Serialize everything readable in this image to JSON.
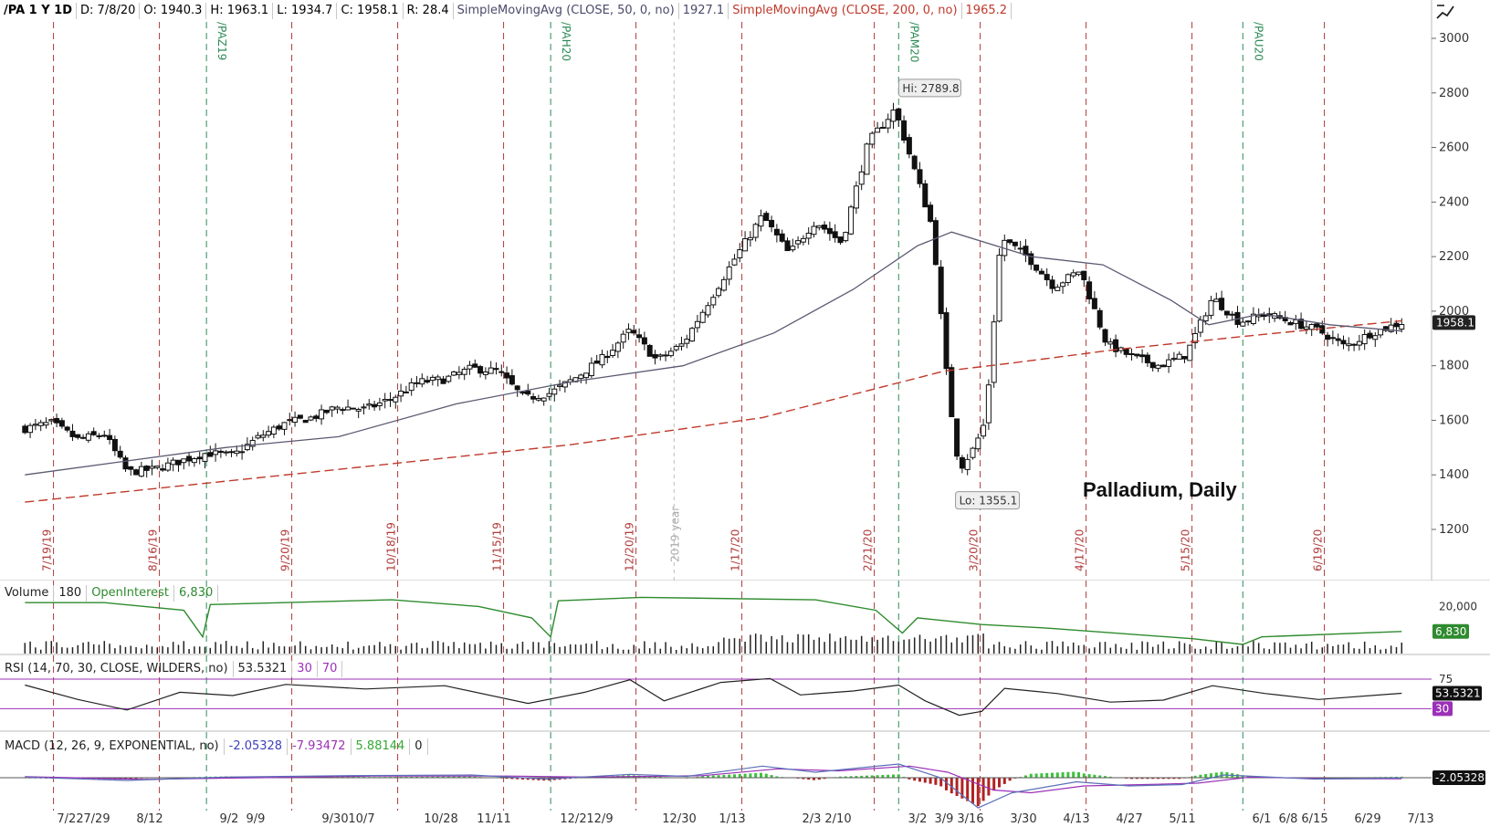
{
  "header": {
    "symbol": "/PA 1 Y 1D",
    "date": "D: 7/8/20",
    "open": "O: 1940.3",
    "high": "H: 1963.1",
    "low": "L: 1934.7",
    "close": "C: 1958.1",
    "range": "R: 28.4",
    "ma50_label": "SimpleMovingAvg (CLOSE, 50, 0, no)",
    "ma50_value": "1927.1",
    "ma200_label": "SimpleMovingAvg (CLOSE, 200, 0, no)",
    "ma200_value": "1965.2"
  },
  "colors": {
    "ma50": "#56566e",
    "ma200": "#c0392b",
    "expiry_red": "#b03a3a",
    "expiry_green": "#2e8b57",
    "open_interest": "#2e8b2e",
    "rsi_band": "#9b30b8"
  },
  "chart_data": [
    {
      "type": "candlestick",
      "title": "Palladium, Daily",
      "ylim": [
        1100,
        3050
      ],
      "y_ticks": [
        "3000",
        "2800",
        "2600",
        "2400",
        "2200",
        "2000",
        "1800",
        "1600",
        "1400",
        "1200"
      ],
      "price_label": "1958.1",
      "hi_label": "Hi: 2789.8",
      "lo_label": "Lo: 1355.1",
      "x_labels": [
        "7/22",
        "7/29",
        "8/12",
        "9/2",
        "9/9",
        "9/30",
        "10/7",
        "10/28",
        "11/11",
        "12/2",
        "12/9",
        "12/30",
        "1/13",
        "2/3",
        "2/10",
        "3/2",
        "3/9",
        "3/16",
        "3/30",
        "4/13",
        "4/27",
        "5/11",
        "6/1",
        "6/8",
        "6/15",
        "6/29",
        "7/13"
      ],
      "expiry_dates": [
        "7/19/19",
        "8/16/19",
        "9/20/19",
        "10/18/19",
        "11/15/19",
        "12/20/19",
        "1/17/20",
        "2/21/20",
        "3/20/20",
        "4/17/20",
        "5/15/20",
        "6/19/20"
      ],
      "contract_rolls": [
        "/PAZ19",
        "/PAH20",
        "/PAM20",
        "/PAU20"
      ],
      "year_marker": "2019 year",
      "price_path": [
        {
          "x": "7/10/19",
          "y": 1570
        },
        {
          "x": "7/17/19",
          "y": 1590
        },
        {
          "x": "7/24/19",
          "y": 1530
        },
        {
          "x": "7/31/19",
          "y": 1550
        },
        {
          "x": "8/6/19",
          "y": 1410
        },
        {
          "x": "8/13/19",
          "y": 1420
        },
        {
          "x": "8/20/19",
          "y": 1450
        },
        {
          "x": "8/27/19",
          "y": 1480
        },
        {
          "x": "9/3/19",
          "y": 1470
        },
        {
          "x": "9/10/19",
          "y": 1540
        },
        {
          "x": "9/17/19",
          "y": 1590
        },
        {
          "x": "9/24/19",
          "y": 1610
        },
        {
          "x": "10/1/19",
          "y": 1650
        },
        {
          "x": "10/8/19",
          "y": 1640
        },
        {
          "x": "10/15/19",
          "y": 1680
        },
        {
          "x": "10/22/19",
          "y": 1740
        },
        {
          "x": "10/29/19",
          "y": 1750
        },
        {
          "x": "11/5/19",
          "y": 1790
        },
        {
          "x": "11/12/19",
          "y": 1780
        },
        {
          "x": "11/19/19",
          "y": 1680
        },
        {
          "x": "11/26/19",
          "y": 1700
        },
        {
          "x": "12/3/19",
          "y": 1760
        },
        {
          "x": "12/10/19",
          "y": 1830
        },
        {
          "x": "12/17/19",
          "y": 1930
        },
        {
          "x": "12/24/19",
          "y": 1820
        },
        {
          "x": "12/31/19",
          "y": 1880
        },
        {
          "x": "1/7/20",
          "y": 2040
        },
        {
          "x": "1/14/20",
          "y": 2200
        },
        {
          "x": "1/21/20",
          "y": 2350
        },
        {
          "x": "1/28/20",
          "y": 2210
        },
        {
          "x": "2/4/20",
          "y": 2330
        },
        {
          "x": "2/11/20",
          "y": 2250
        },
        {
          "x": "2/18/20",
          "y": 2620
        },
        {
          "x": "2/25/20",
          "y": 2740
        },
        {
          "x": "3/3/20",
          "y": 2440
        },
        {
          "x": "3/6/20",
          "y": 2300
        },
        {
          "x": "3/10/20",
          "y": 1720
        },
        {
          "x": "3/13/20",
          "y": 1420
        },
        {
          "x": "3/17/20",
          "y": 1500
        },
        {
          "x": "3/20/20",
          "y": 1600
        },
        {
          "x": "3/24/20",
          "y": 2270
        },
        {
          "x": "3/31/20",
          "y": 2200
        },
        {
          "x": "4/7/20",
          "y": 2090
        },
        {
          "x": "4/14/20",
          "y": 2150
        },
        {
          "x": "4/21/20",
          "y": 1880
        },
        {
          "x": "4/28/20",
          "y": 1830
        },
        {
          "x": "5/5/20",
          "y": 1800
        },
        {
          "x": "5/12/20",
          "y": 1840
        },
        {
          "x": "5/19/20",
          "y": 2050
        },
        {
          "x": "5/26/20",
          "y": 1960
        },
        {
          "x": "6/2/20",
          "y": 1990
        },
        {
          "x": "6/9/20",
          "y": 1960
        },
        {
          "x": "6/16/20",
          "y": 1930
        },
        {
          "x": "6/23/20",
          "y": 1870
        },
        {
          "x": "6/30/20",
          "y": 1920
        },
        {
          "x": "7/8/20",
          "y": 1958
        }
      ],
      "sma50": [
        {
          "x": "7/10/19",
          "y": 1400
        },
        {
          "x": "9/1/19",
          "y": 1500
        },
        {
          "x": "10/1/19",
          "y": 1540
        },
        {
          "x": "11/1/19",
          "y": 1660
        },
        {
          "x": "12/1/19",
          "y": 1740
        },
        {
          "x": "12/31/19",
          "y": 1800
        },
        {
          "x": "1/24/20",
          "y": 1920
        },
        {
          "x": "2/14/20",
          "y": 2080
        },
        {
          "x": "3/2/20",
          "y": 2240
        },
        {
          "x": "3/11/20",
          "y": 2290
        },
        {
          "x": "4/1/20",
          "y": 2200
        },
        {
          "x": "4/20/20",
          "y": 2170
        },
        {
          "x": "5/8/20",
          "y": 2040
        },
        {
          "x": "5/18/20",
          "y": 1950
        },
        {
          "x": "6/1/20",
          "y": 1990
        },
        {
          "x": "6/19/20",
          "y": 1950
        },
        {
          "x": "7/8/20",
          "y": 1927
        }
      ],
      "sma200": [
        {
          "x": "7/10/19",
          "y": 1300
        },
        {
          "x": "10/1/19",
          "y": 1420
        },
        {
          "x": "12/1/19",
          "y": 1510
        },
        {
          "x": "1/21/20",
          "y": 1610
        },
        {
          "x": "3/9/20",
          "y": 1780
        },
        {
          "x": "3/27/20",
          "y": 1810
        },
        {
          "x": "4/24/20",
          "y": 1860
        },
        {
          "x": "5/29/20",
          "y": 1910
        },
        {
          "x": "7/8/20",
          "y": 1965
        }
      ]
    },
    {
      "type": "bar",
      "title": "Volume",
      "volume_label": "Volume",
      "volume_value": "180",
      "oi_label": "OpenInterest",
      "oi_value": "6,830",
      "y_ticks": [
        "20,000"
      ],
      "oi_path": [
        {
          "x": "7/10/19",
          "y": 22000
        },
        {
          "x": "7/31/19",
          "y": 22000
        },
        {
          "x": "8/21/19",
          "y": 18000
        },
        {
          "x": "8/26/19",
          "y": 4000
        },
        {
          "x": "8/28/19",
          "y": 21000
        },
        {
          "x": "10/15/19",
          "y": 23500
        },
        {
          "x": "11/7/19",
          "y": 20000
        },
        {
          "x": "11/21/19",
          "y": 14000
        },
        {
          "x": "11/26/19",
          "y": 4000
        },
        {
          "x": "11/28/19",
          "y": 23000
        },
        {
          "x": "12/20/19",
          "y": 24800
        },
        {
          "x": "2/4/20",
          "y": 23500
        },
        {
          "x": "2/20/20",
          "y": 18000
        },
        {
          "x": "2/27/20",
          "y": 6000
        },
        {
          "x": "3/2/20",
          "y": 14000
        },
        {
          "x": "3/19/20",
          "y": 10500
        },
        {
          "x": "4/6/20",
          "y": 8500
        },
        {
          "x": "5/14/20",
          "y": 3000
        },
        {
          "x": "5/27/20",
          "y": 0
        },
        {
          "x": "6/1/20",
          "y": 4000
        },
        {
          "x": "7/8/20",
          "y": 6830
        }
      ]
    },
    {
      "type": "line",
      "title": "RSI",
      "label": "RSI (14, 70, 30, CLOSE, WILDERS, no)",
      "value": "53.5321",
      "overbought": "70",
      "oversold": "30",
      "ylim": [
        0,
        100
      ],
      "y_ticks": [
        "75",
        "30"
      ],
      "series": [
        {
          "x": "7/10/19",
          "y": 66
        },
        {
          "x": "7/24/19",
          "y": 44
        },
        {
          "x": "8/6/19",
          "y": 28
        },
        {
          "x": "8/20/19",
          "y": 55
        },
        {
          "x": "9/3/19",
          "y": 50
        },
        {
          "x": "9/17/19",
          "y": 67
        },
        {
          "x": "10/8/19",
          "y": 60
        },
        {
          "x": "10/29/19",
          "y": 65
        },
        {
          "x": "11/20/19",
          "y": 38
        },
        {
          "x": "12/5/19",
          "y": 55
        },
        {
          "x": "12/17/19",
          "y": 74
        },
        {
          "x": "12/26/19",
          "y": 42
        },
        {
          "x": "1/10/20",
          "y": 70
        },
        {
          "x": "1/23/20",
          "y": 76
        },
        {
          "x": "1/31/20",
          "y": 51
        },
        {
          "x": "2/14/20",
          "y": 57
        },
        {
          "x": "2/26/20",
          "y": 66
        },
        {
          "x": "3/4/20",
          "y": 42
        },
        {
          "x": "3/13/20",
          "y": 20
        },
        {
          "x": "3/19/20",
          "y": 26
        },
        {
          "x": "3/25/20",
          "y": 61
        },
        {
          "x": "4/8/20",
          "y": 53
        },
        {
          "x": "4/22/20",
          "y": 40
        },
        {
          "x": "5/6/20",
          "y": 43
        },
        {
          "x": "5/19/20",
          "y": 65
        },
        {
          "x": "6/2/20",
          "y": 53
        },
        {
          "x": "6/16/20",
          "y": 44
        },
        {
          "x": "7/8/20",
          "y": 53.5
        }
      ]
    },
    {
      "type": "line",
      "title": "MACD",
      "label": "MACD (12, 26, 9, EXPONENTIAL, no)",
      "value": "-2.05328",
      "avg_value": "-7.93472",
      "diff_value": "5.88144",
      "zero": "0",
      "ylim": [
        -240,
        120
      ],
      "macd": [
        {
          "x": "7/10/19",
          "y": 5
        },
        {
          "x": "8/6/19",
          "y": -20
        },
        {
          "x": "9/1/19",
          "y": 5
        },
        {
          "x": "10/1/19",
          "y": 15
        },
        {
          "x": "11/5/19",
          "y": 20
        },
        {
          "x": "11/25/19",
          "y": -10
        },
        {
          "x": "12/17/19",
          "y": 25
        },
        {
          "x": "1/1/20",
          "y": 10
        },
        {
          "x": "1/21/20",
          "y": 85
        },
        {
          "x": "2/4/20",
          "y": 40
        },
        {
          "x": "2/26/20",
          "y": 100
        },
        {
          "x": "3/8/20",
          "y": 0
        },
        {
          "x": "3/18/20",
          "y": -220
        },
        {
          "x": "3/27/20",
          "y": -110
        },
        {
          "x": "4/13/20",
          "y": -30
        },
        {
          "x": "4/27/20",
          "y": -60
        },
        {
          "x": "5/11/20",
          "y": -50
        },
        {
          "x": "5/22/20",
          "y": 20
        },
        {
          "x": "6/15/20",
          "y": -10
        },
        {
          "x": "7/8/20",
          "y": -2
        }
      ],
      "signal": [
        {
          "x": "7/10/19",
          "y": 8
        },
        {
          "x": "8/10/19",
          "y": -12
        },
        {
          "x": "9/10/19",
          "y": 0
        },
        {
          "x": "10/10/19",
          "y": 12
        },
        {
          "x": "11/15/19",
          "y": 12
        },
        {
          "x": "12/5/19",
          "y": 5
        },
        {
          "x": "1/5/20",
          "y": 15
        },
        {
          "x": "1/25/20",
          "y": 65
        },
        {
          "x": "2/10/20",
          "y": 50
        },
        {
          "x": "2/29/20",
          "y": 85
        },
        {
          "x": "3/10/20",
          "y": 40
        },
        {
          "x": "3/22/20",
          "y": -90
        },
        {
          "x": "4/1/20",
          "y": -110
        },
        {
          "x": "4/15/20",
          "y": -60
        },
        {
          "x": "5/1/20",
          "y": -50
        },
        {
          "x": "5/15/20",
          "y": -40
        },
        {
          "x": "5/29/20",
          "y": 5
        },
        {
          "x": "6/20/20",
          "y": -8
        },
        {
          "x": "7/8/20",
          "y": -8
        }
      ]
    }
  ]
}
